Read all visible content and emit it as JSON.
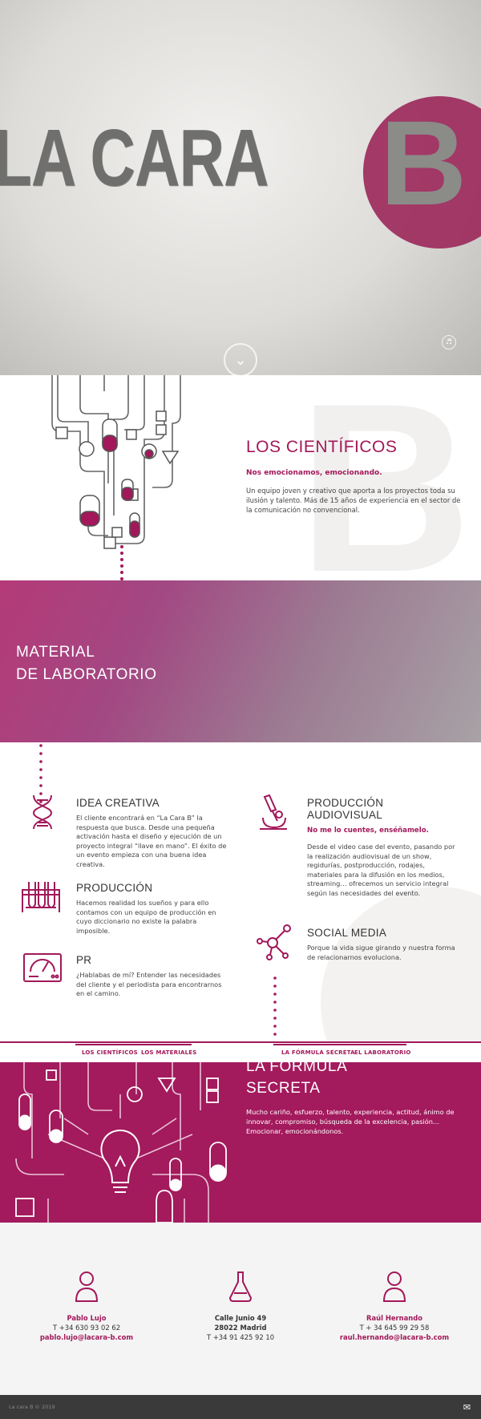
{
  "hero": {
    "title_text": "LA CARA",
    "logo_letter": "B",
    "down_icon": "chevron-down-icon",
    "sound_icon": "speaker-icon"
  },
  "scientists": {
    "heading": "LOS CIENTÍFICOS",
    "lead": "Nos emocionamos, emocionando.",
    "body": "Un equipo joven y creativo que aporta a los proyectos toda su ilusión y talento. Más de 15 años de experiencia en el sector de la comunicación no convencional.",
    "illustration": "lab-pipes-illustration"
  },
  "material": {
    "line1": "MATERIAL",
    "line2": "DE LABORATORIO"
  },
  "services": [
    {
      "title": "IDEA CREATIVA",
      "icon": "dna-icon",
      "body": "El cliente encontrará en “La Cara B” la respuesta que busca. Desde una pequeña activación hasta el diseño y ejecución de un proyecto integral “llave en mano”. El éxito de un evento empieza con una buena idea creativa."
    },
    {
      "title": "PRODUCCIÓN",
      "icon": "test-tubes-icon",
      "body": "Hacemos realidad los sueños y para ello contamos con un equipo de producción en cuyo diccionario no existe la palabra imposible."
    },
    {
      "title": "PR",
      "icon": "meter-icon",
      "body": "¿Hablabas de mí? Entender las necesidades del cliente y el periodista para encontrarnos en el camino."
    },
    {
      "title_1": "PRODUCCIÓN",
      "title_2": "AUDIOVISUAL",
      "icon": "microscope-icon",
      "sub": "No me lo cuentes, enséñamelo.",
      "body": "Desde el video case del evento, pasando por la realización audiovisual de un show, regidurías, postproducción, rodajes, materiales para la difusión en los medios, streaming… ofrecemos un servicio integral según las necesidades del evento."
    },
    {
      "title": "SOCIAL MEDIA",
      "icon": "network-icon",
      "body": "Porque la vida sigue girando y nuestra forma de relacionarnos evoluciona."
    }
  ],
  "nav": {
    "items": [
      "LOS CIENTÍFICOS",
      "LOS MATERIALES",
      "LA FÓRMULA SECRETA",
      "EL LABORATORIO"
    ]
  },
  "formula": {
    "line1": "LA FÓRMULA",
    "line2": "SECRETA",
    "body": "Mucho cariño, esfuerzo, talento, experiencia, actitud, ánimo de innovar, compromiso, búsqueda de la excelencia, pasión… Emocionar, emocionándonos."
  },
  "contact": {
    "left": {
      "icon": "person-icon",
      "name": "Pablo Lujo",
      "phone": "T +34 630 93 02 62",
      "email": "pablo.lujo@lacara-b.com"
    },
    "center": {
      "icon": "flask-icon",
      "street": "Calle Junio 49",
      "city": "28022  Madrid",
      "phone": "T +34 91 425 92 10"
    },
    "right": {
      "icon": "person-icon",
      "name": "Raúl Hernando",
      "phone": "T + 34 645 99 29 58",
      "email": "raul.hernando@lacara-b.com"
    }
  },
  "footer": {
    "copyright": "La cara B © 2019",
    "mail_icon": "envelope-icon"
  },
  "colors": {
    "accent": "#a2185a",
    "footer": "#3a3a3a"
  }
}
